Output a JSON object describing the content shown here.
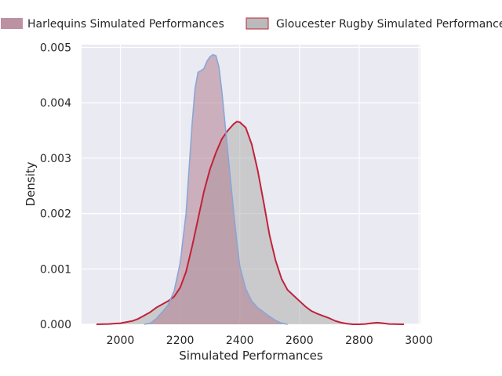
{
  "chart_data": {
    "type": "area",
    "xlabel": "Simulated Performances",
    "ylabel": "Density",
    "xlim": [
      1870,
      3005
    ],
    "ylim": [
      0,
      0.00505
    ],
    "x_ticks": [
      2000,
      2200,
      2400,
      2600,
      2800,
      3000
    ],
    "x_tick_labels": [
      "2000",
      "2200",
      "2400",
      "2600",
      "2800",
      "3000"
    ],
    "y_ticks": [
      0,
      0.001,
      0.002,
      0.003,
      0.004,
      0.005
    ],
    "y_tick_labels": [
      "0.000",
      "0.001",
      "0.002",
      "0.003",
      "0.004",
      "0.005"
    ],
    "grid": true,
    "legend_position": "top",
    "series": [
      {
        "name": "Harlequins Simulated Performances",
        "fill_color": "#b07e90",
        "line_color": "#8aa6d6",
        "x": [
          2080,
          2100,
          2120,
          2140,
          2160,
          2180,
          2200,
          2220,
          2240,
          2250,
          2260,
          2270,
          2280,
          2290,
          2300,
          2310,
          2320,
          2330,
          2340,
          2350,
          2360,
          2370,
          2380,
          2390,
          2400,
          2420,
          2440,
          2460,
          2480,
          2500,
          2520,
          2540,
          2560
        ],
        "y": [
          0,
          2e-05,
          0.0001,
          0.00022,
          0.00035,
          0.0006,
          0.0011,
          0.002,
          0.0036,
          0.00425,
          0.00455,
          0.00458,
          0.00462,
          0.00475,
          0.00483,
          0.00487,
          0.00485,
          0.00465,
          0.0042,
          0.00365,
          0.0031,
          0.00255,
          0.002,
          0.0015,
          0.00105,
          0.00064,
          0.00042,
          0.0003,
          0.00022,
          0.00014,
          7e-05,
          2e-05,
          0
        ]
      },
      {
        "name": "Gloucester Rugby Simulated Performances",
        "fill_color": "#aeaeae",
        "line_color": "#c0233a",
        "x": [
          1920,
          1960,
          2000,
          2040,
          2060,
          2080,
          2100,
          2120,
          2140,
          2160,
          2180,
          2200,
          2220,
          2240,
          2260,
          2280,
          2300,
          2320,
          2340,
          2360,
          2380,
          2390,
          2400,
          2420,
          2440,
          2460,
          2480,
          2500,
          2520,
          2540,
          2560,
          2580,
          2600,
          2620,
          2640,
          2660,
          2680,
          2700,
          2720,
          2740,
          2760,
          2780,
          2800,
          2820,
          2840,
          2860,
          2880,
          2900,
          2950
        ],
        "y": [
          0,
          5e-06,
          2e-05,
          6e-05,
          0.0001,
          0.00016,
          0.00022,
          0.0003,
          0.00036,
          0.00042,
          0.0005,
          0.00066,
          0.00095,
          0.0014,
          0.0019,
          0.0024,
          0.0028,
          0.0031,
          0.00335,
          0.0035,
          0.00362,
          0.00366,
          0.00365,
          0.00355,
          0.00325,
          0.00278,
          0.0022,
          0.0016,
          0.00115,
          0.00082,
          0.00062,
          0.00052,
          0.00042,
          0.00032,
          0.00024,
          0.00019,
          0.00015,
          0.00011,
          6e-05,
          3e-05,
          1e-05,
          0,
          0,
          5e-06,
          2e-05,
          3e-05,
          2e-05,
          5e-06,
          0
        ]
      }
    ]
  }
}
